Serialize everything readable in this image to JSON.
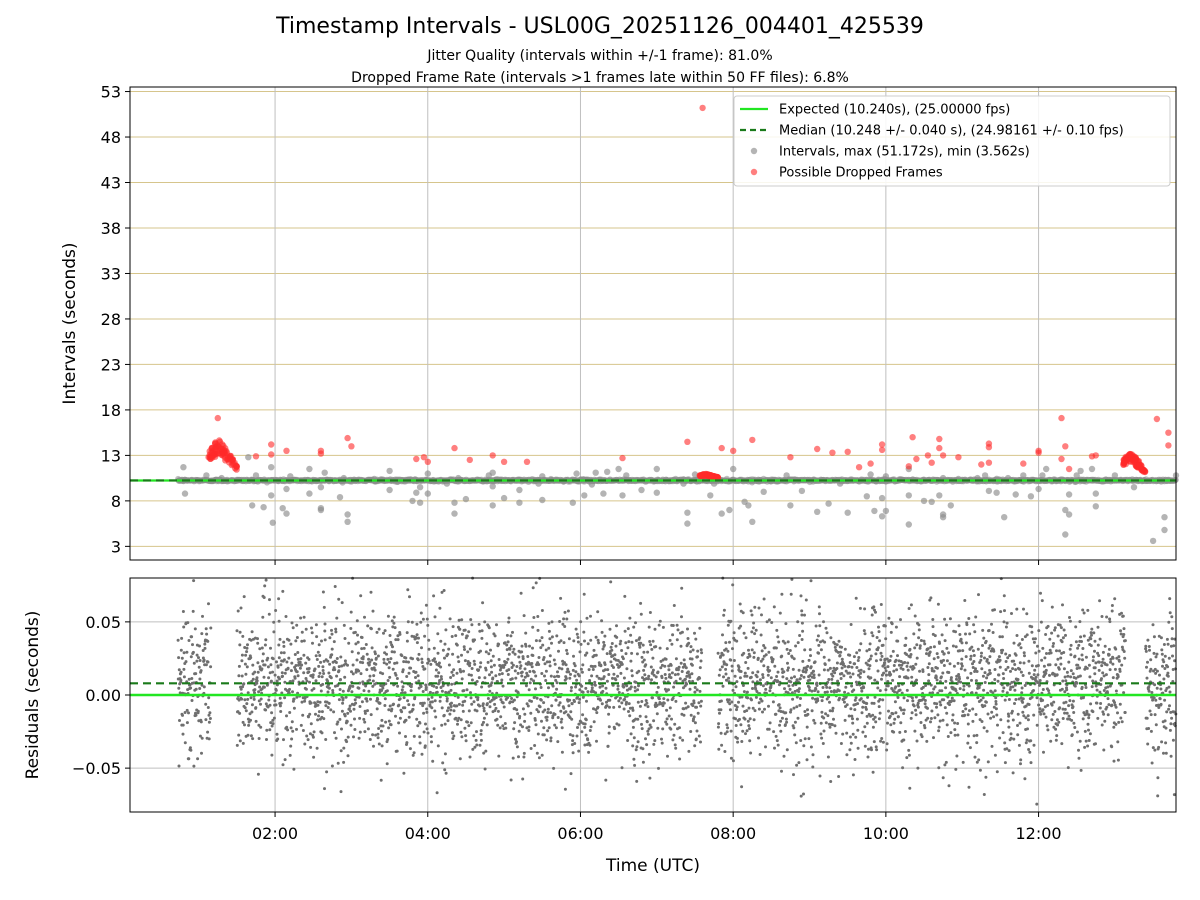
{
  "header": {
    "title": "Timestamp Intervals - USL00G_20251126_004401_425539",
    "subtitle1": "Jitter Quality (intervals within +/-1 frame): 81.0%",
    "subtitle2": "Dropped Frame Rate (intervals >1 frames late within 50 FF files): 6.8%"
  },
  "colors": {
    "expected": "#22e622",
    "median": "#1a7a1a",
    "intervals": "#8c8c8c",
    "dropped": "#ff2a2a",
    "hgrid": "#d6c58c",
    "vgrid": "#bfbfbf",
    "residual": "#6f6f6f"
  },
  "chart_data": [
    {
      "type": "scatter",
      "title": "Timestamp Intervals - USL00G_20251126_004401_425539",
      "xlabel": "",
      "ylabel": "Intervals (seconds)",
      "xlim_hours": [
        0.1,
        13.8
      ],
      "ylim": [
        1.5,
        53.5
      ],
      "yticks": [
        "3",
        "8",
        "13",
        "18",
        "23",
        "28",
        "33",
        "38",
        "43",
        "48",
        "53"
      ],
      "ytick_values": [
        3,
        8,
        13,
        18,
        23,
        28,
        33,
        38,
        43,
        48,
        53
      ],
      "xtick_hours": [
        2,
        4,
        6,
        8,
        10,
        12
      ],
      "legend_position": "top-right",
      "legend": [
        {
          "kind": "line",
          "label": "Expected (10.240s), (25.00000 fps)"
        },
        {
          "kind": "dashed",
          "label": "Median (10.248 +/- 0.040 s), (24.98161 +/- 0.10 fps)"
        },
        {
          "kind": "gray-dot",
          "label": "Intervals, max (51.172s), min (3.562s)"
        },
        {
          "kind": "red-dot",
          "label": "Possible Dropped Frames"
        }
      ],
      "expected_value": 10.24,
      "median_value": 10.248,
      "time_range_hours": [
        0.73,
        13.8
      ],
      "gray_outliers": [
        [
          0.8,
          11.7
        ],
        [
          0.82,
          8.8
        ],
        [
          1.1,
          10.8
        ],
        [
          1.3,
          10.5
        ],
        [
          1.5,
          10.3
        ],
        [
          1.65,
          12.8
        ],
        [
          1.7,
          7.5
        ],
        [
          1.75,
          10.8
        ],
        [
          1.85,
          7.3
        ],
        [
          1.95,
          11.7
        ],
        [
          1.95,
          8.6
        ],
        [
          1.97,
          5.6
        ],
        [
          2.1,
          7.2
        ],
        [
          2.15,
          6.6
        ],
        [
          2.15,
          9.3
        ],
        [
          2.2,
          10.7
        ],
        [
          2.45,
          11.5
        ],
        [
          2.45,
          8.8
        ],
        [
          2.6,
          7.0
        ],
        [
          2.6,
          7.2
        ],
        [
          2.6,
          9.5
        ],
        [
          2.65,
          11.1
        ],
        [
          2.85,
          8.4
        ],
        [
          2.9,
          10.5
        ],
        [
          2.95,
          6.5
        ],
        [
          2.95,
          5.7
        ],
        [
          3.3,
          10.4
        ],
        [
          3.5,
          11.3
        ],
        [
          3.5,
          9.2
        ],
        [
          3.6,
          10.1
        ],
        [
          3.8,
          8.0
        ],
        [
          3.85,
          8.9
        ],
        [
          3.9,
          7.8
        ],
        [
          3.9,
          9.5
        ],
        [
          4.0,
          11.0
        ],
        [
          4.0,
          8.8
        ],
        [
          4.25,
          9.9
        ],
        [
          4.35,
          6.6
        ],
        [
          4.35,
          7.8
        ],
        [
          4.4,
          10.5
        ],
        [
          4.5,
          8.2
        ],
        [
          4.8,
          10.8
        ],
        [
          4.85,
          11.1
        ],
        [
          4.85,
          9.6
        ],
        [
          4.85,
          7.5
        ],
        [
          5.0,
          8.3
        ],
        [
          5.2,
          9.2
        ],
        [
          5.2,
          7.8
        ],
        [
          5.45,
          9.9
        ],
        [
          5.5,
          10.7
        ],
        [
          5.5,
          8.1
        ],
        [
          5.9,
          7.8
        ],
        [
          5.95,
          11.0
        ],
        [
          6.05,
          8.6
        ],
        [
          6.15,
          9.8
        ],
        [
          6.2,
          11.1
        ],
        [
          6.3,
          8.8
        ],
        [
          6.35,
          11.2
        ],
        [
          6.5,
          11.5
        ],
        [
          6.55,
          8.6
        ],
        [
          6.6,
          10.8
        ],
        [
          6.8,
          9.2
        ],
        [
          7.0,
          8.9
        ],
        [
          7.0,
          11.5
        ],
        [
          7.35,
          9.9
        ],
        [
          7.4,
          6.7
        ],
        [
          7.4,
          5.5
        ],
        [
          7.5,
          10.9
        ],
        [
          7.7,
          8.6
        ],
        [
          7.75,
          9.9
        ],
        [
          7.85,
          6.6
        ],
        [
          7.95,
          7.0
        ],
        [
          8.0,
          11.5
        ],
        [
          8.15,
          7.9
        ],
        [
          8.2,
          7.5
        ],
        [
          8.25,
          5.7
        ],
        [
          8.35,
          10.2
        ],
        [
          8.4,
          9.0
        ],
        [
          8.7,
          10.8
        ],
        [
          8.75,
          7.5
        ],
        [
          8.9,
          9.1
        ],
        [
          9.1,
          6.8
        ],
        [
          9.25,
          7.7
        ],
        [
          9.4,
          9.9
        ],
        [
          9.5,
          6.7
        ],
        [
          9.75,
          8.5
        ],
        [
          9.8,
          10.9
        ],
        [
          9.85,
          6.9
        ],
        [
          9.95,
          8.3
        ],
        [
          9.95,
          6.3
        ],
        [
          10.0,
          6.9
        ],
        [
          10.0,
          10.7
        ],
        [
          10.3,
          11.5
        ],
        [
          10.3,
          8.6
        ],
        [
          10.3,
          5.4
        ],
        [
          10.5,
          8.0
        ],
        [
          10.6,
          7.9
        ],
        [
          10.7,
          8.6
        ],
        [
          10.75,
          10.5
        ],
        [
          10.75,
          6.2
        ],
        [
          10.75,
          6.5
        ],
        [
          10.85,
          7.5
        ],
        [
          10.95,
          10.4
        ],
        [
          11.2,
          10.5
        ],
        [
          11.3,
          10.8
        ],
        [
          11.35,
          9.1
        ],
        [
          11.45,
          8.9
        ],
        [
          11.55,
          6.2
        ],
        [
          11.6,
          10.5
        ],
        [
          11.7,
          8.7
        ],
        [
          11.8,
          10.8
        ],
        [
          11.9,
          8.5
        ],
        [
          12.0,
          9.3
        ],
        [
          12.05,
          10.8
        ],
        [
          12.1,
          11.5
        ],
        [
          12.35,
          4.3
        ],
        [
          12.35,
          7.0
        ],
        [
          12.4,
          8.7
        ],
        [
          12.4,
          6.5
        ],
        [
          12.5,
          10.8
        ],
        [
          12.55,
          11.3
        ],
        [
          12.7,
          11.5
        ],
        [
          12.75,
          8.8
        ],
        [
          12.75,
          7.4
        ],
        [
          13.0,
          10.8
        ],
        [
          13.25,
          9.5
        ],
        [
          13.5,
          3.6
        ],
        [
          13.65,
          4.8
        ],
        [
          13.65,
          6.2
        ],
        [
          13.8,
          10.8
        ]
      ],
      "dropped_points": [
        [
          7.6,
          51.2
        ],
        [
          1.25,
          17.1
        ],
        [
          1.75,
          12.9
        ],
        [
          1.95,
          14.2
        ],
        [
          1.95,
          13.1
        ],
        [
          2.15,
          13.5
        ],
        [
          2.6,
          13.5
        ],
        [
          2.6,
          13.2
        ],
        [
          2.95,
          14.9
        ],
        [
          3.0,
          14.0
        ],
        [
          3.85,
          12.6
        ],
        [
          3.95,
          12.8
        ],
        [
          4.0,
          12.3
        ],
        [
          4.35,
          13.8
        ],
        [
          4.55,
          12.5
        ],
        [
          4.85,
          13.0
        ],
        [
          5.0,
          12.3
        ],
        [
          5.3,
          12.3
        ],
        [
          6.55,
          12.7
        ],
        [
          7.4,
          14.5
        ],
        [
          7.85,
          13.8
        ],
        [
          8.0,
          13.5
        ],
        [
          8.25,
          14.7
        ],
        [
          8.75,
          12.8
        ],
        [
          9.1,
          13.7
        ],
        [
          9.3,
          13.3
        ],
        [
          9.5,
          13.4
        ],
        [
          9.65,
          11.7
        ],
        [
          9.8,
          12.1
        ],
        [
          9.95,
          13.6
        ],
        [
          9.95,
          14.2
        ],
        [
          10.3,
          11.8
        ],
        [
          10.35,
          15.0
        ],
        [
          10.4,
          12.6
        ],
        [
          10.55,
          13.0
        ],
        [
          10.6,
          12.2
        ],
        [
          10.7,
          14.8
        ],
        [
          10.7,
          13.8
        ],
        [
          10.75,
          13.0
        ],
        [
          10.95,
          12.8
        ],
        [
          11.25,
          12.0
        ],
        [
          11.35,
          12.2
        ],
        [
          11.35,
          14.3
        ],
        [
          11.35,
          13.9
        ],
        [
          11.8,
          12.1
        ],
        [
          12.0,
          13.3
        ],
        [
          12.0,
          13.5
        ],
        [
          12.3,
          17.1
        ],
        [
          12.3,
          12.6
        ],
        [
          12.35,
          14.0
        ],
        [
          12.4,
          11.5
        ],
        [
          12.7,
          12.9
        ],
        [
          12.75,
          13.0
        ],
        [
          13.55,
          17.0
        ],
        [
          13.7,
          15.5
        ],
        [
          13.7,
          14.1
        ]
      ],
      "dropped_clusters": [
        {
          "from_hours": 1.12,
          "to_hours": 1.5,
          "peak_value": 14.9
        },
        {
          "from_hours": 7.55,
          "to_hours": 7.8,
          "peak_value": 11.0
        },
        {
          "from_hours": 13.1,
          "to_hours": 13.4,
          "peak_value": 13.5
        }
      ]
    },
    {
      "type": "scatter",
      "title": "",
      "xlabel": "Time (UTC)",
      "ylabel": "Residuals (seconds)",
      "xlim_hours": [
        0.1,
        13.8
      ],
      "ylim": [
        -0.08,
        0.08
      ],
      "yticks": [
        "0.05",
        "0.00",
        "−0.05"
      ],
      "ytick_values": [
        0.05,
        0.0,
        -0.05
      ],
      "xticks": [
        "02:00",
        "04:00",
        "06:00",
        "08:00",
        "10:00",
        "12:00"
      ],
      "xtick_hours": [
        2,
        4,
        6,
        8,
        10,
        12
      ],
      "expected_residual": 0.0,
      "median_residual": 0.008,
      "point_count": 4300,
      "typical_spread": 0.025,
      "min_residual": -0.08,
      "max_residual": 0.08
    }
  ]
}
